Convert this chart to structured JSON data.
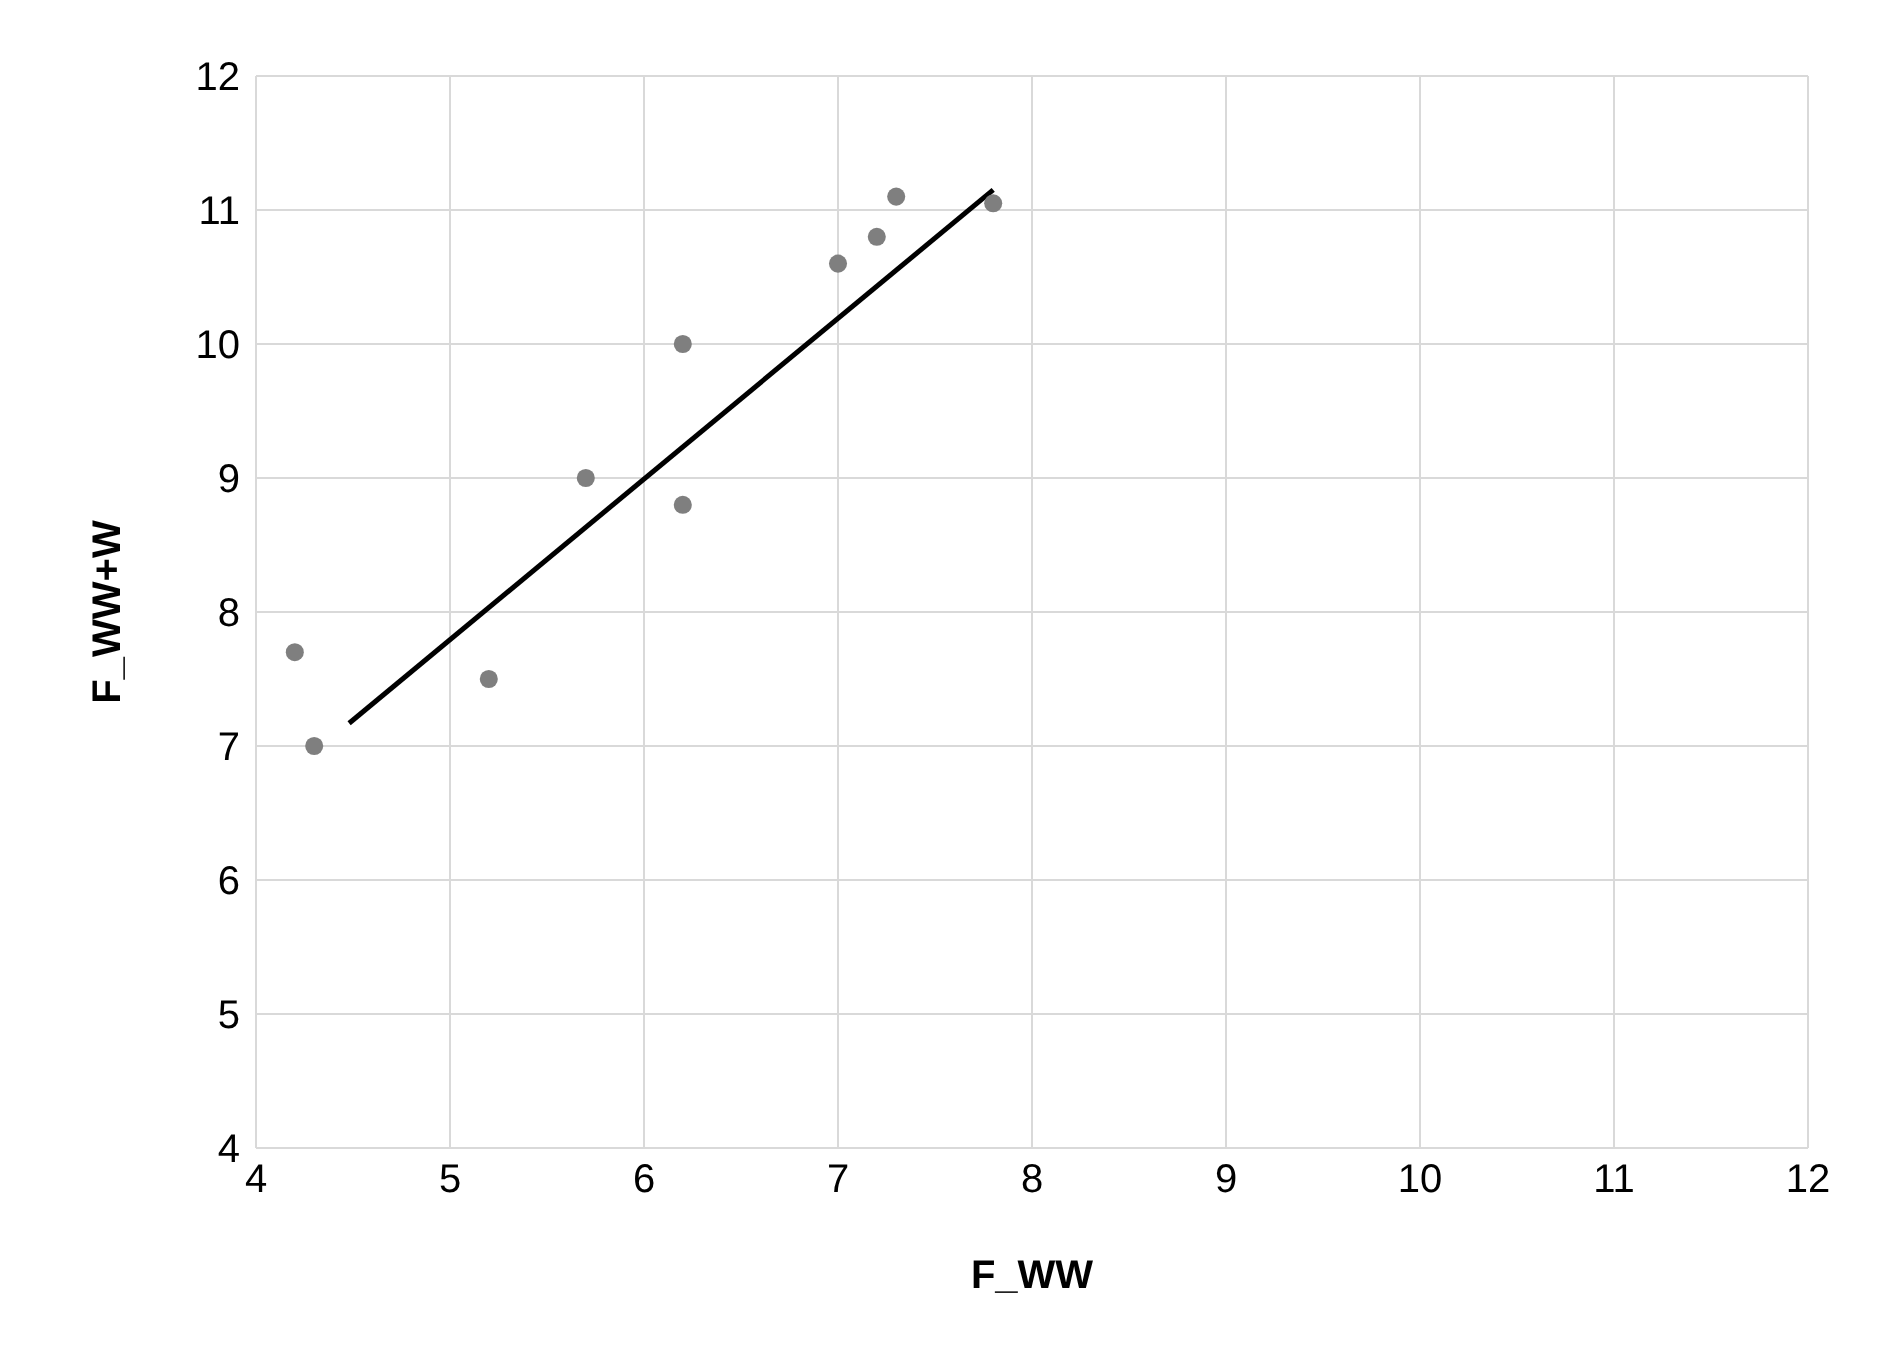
{
  "chart_data": {
    "type": "scatter",
    "xlabel": "F_WW",
    "ylabel": "F_WW+W",
    "x": [
      4.2,
      4.3,
      5.2,
      5.7,
      6.2,
      6.2,
      7.0,
      7.2,
      7.3,
      7.8
    ],
    "series": [
      {
        "color": "#7f7f7f",
        "values": [
          7.7,
          7.0,
          7.5,
          9.0,
          10.0,
          8.8,
          10.6,
          10.8,
          11.1,
          11.05
        ],
        "marker": "circle"
      },
      {
        "type": "line",
        "color": "#000000",
        "x": [
          4.48,
          7.8
        ],
        "values": [
          7.17,
          11.15
        ],
        "marker": "none"
      }
    ],
    "xlim": [
      4,
      12
    ],
    "xticks": [
      4,
      5,
      6,
      7,
      8,
      9,
      10,
      11,
      12
    ],
    "ylim": [
      4,
      12
    ],
    "yticks": [
      4,
      5,
      6,
      7,
      8,
      9,
      10,
      11,
      12
    ],
    "grid": true
  }
}
